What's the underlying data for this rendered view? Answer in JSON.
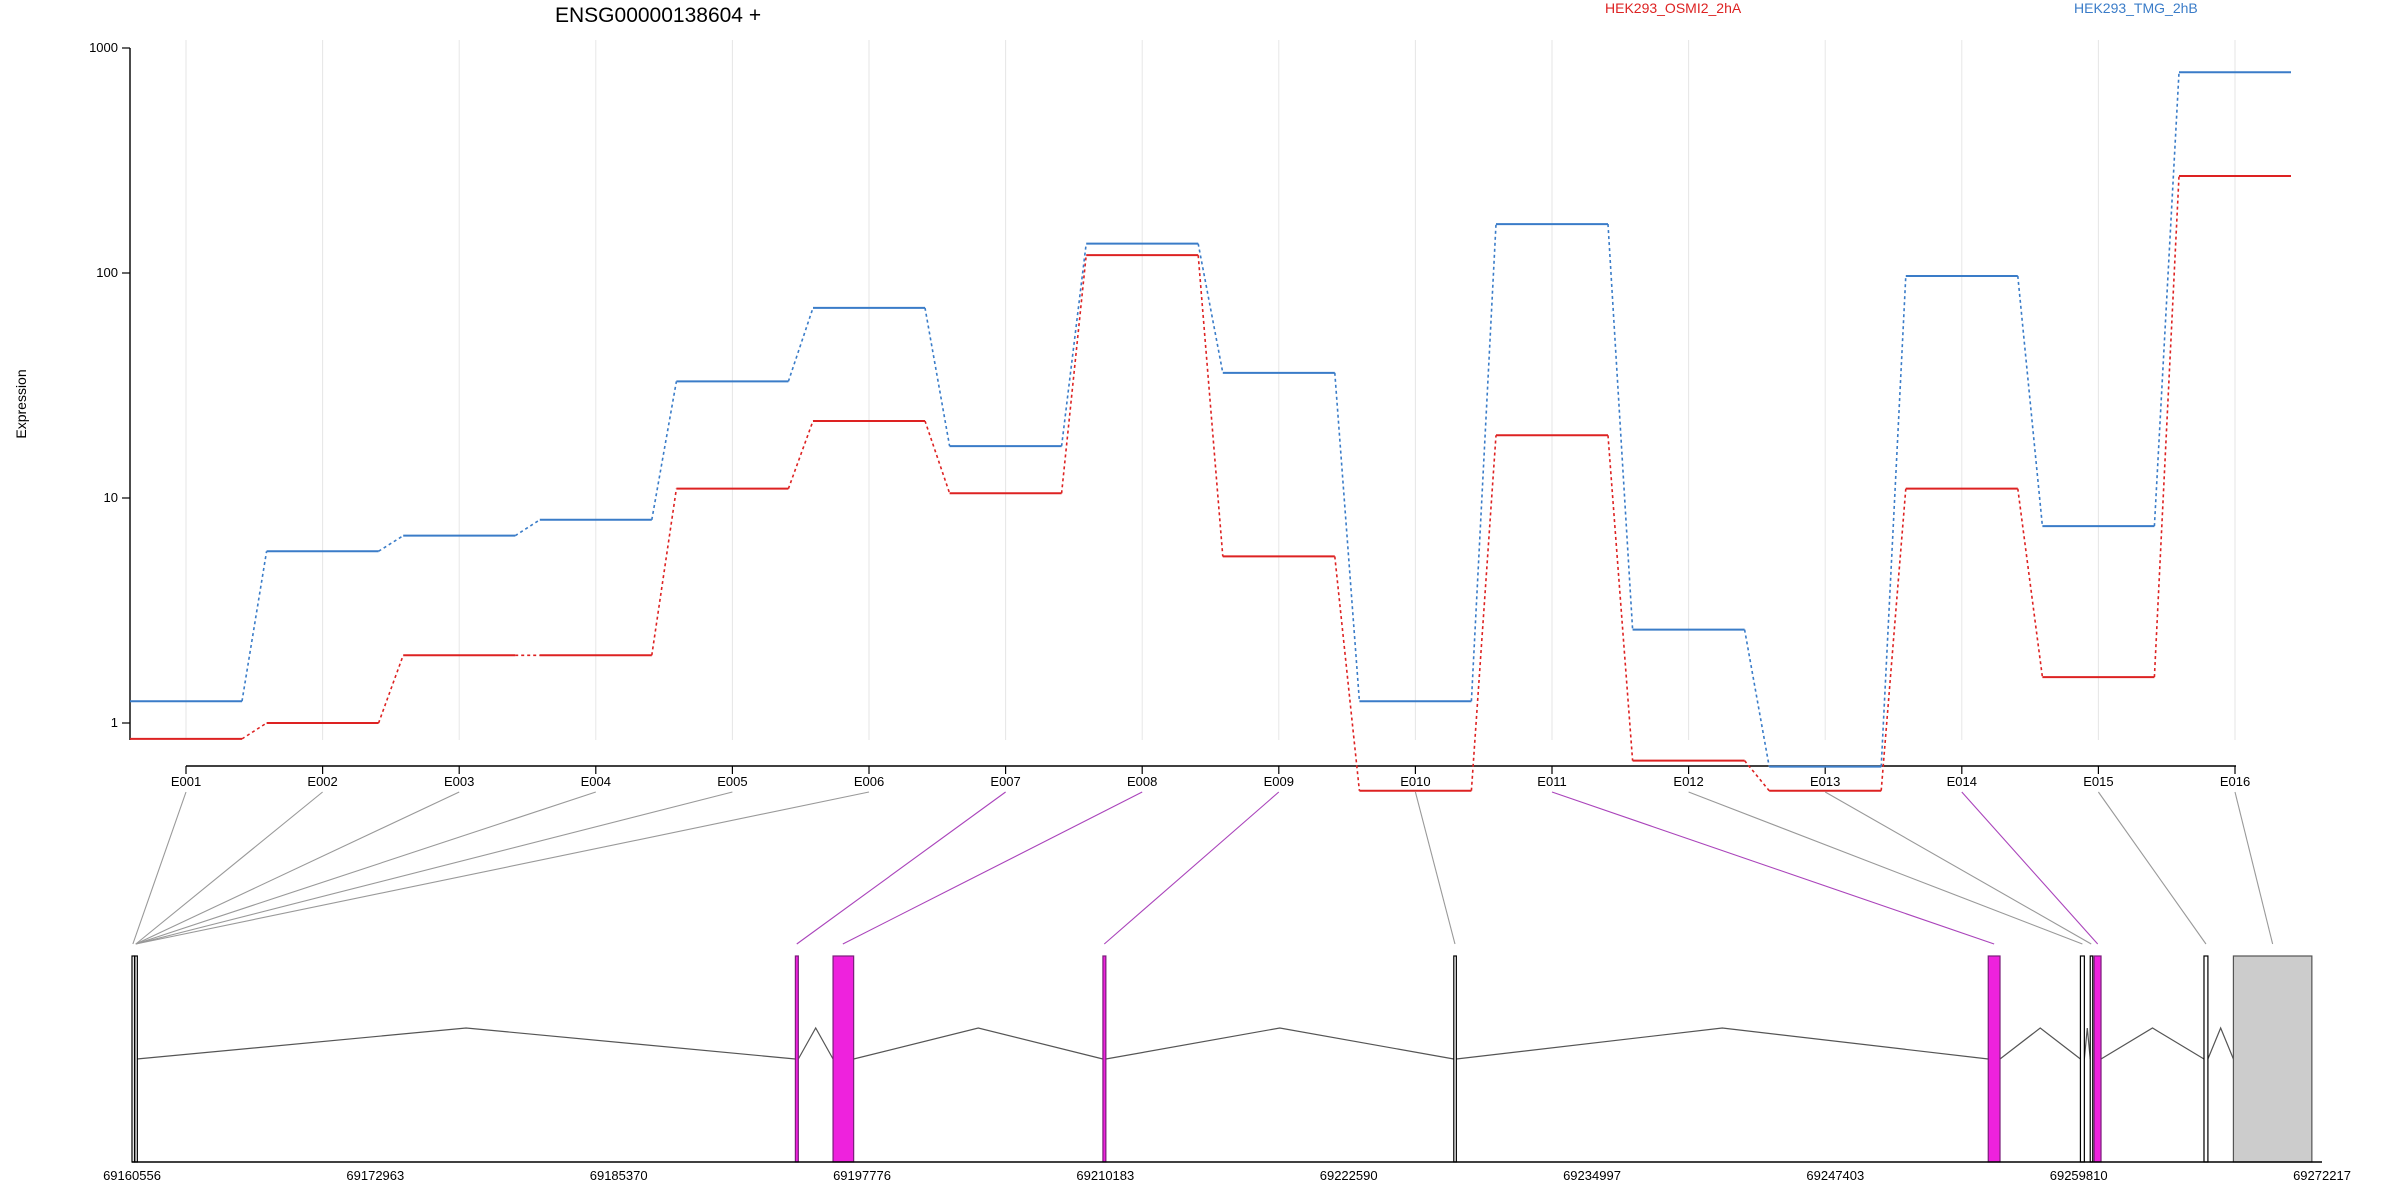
{
  "chart_data": {
    "type": "line",
    "title": "ENSG00000138604 +",
    "ylabel": "Expression",
    "xlabel": "",
    "y_scale": "log",
    "ylim": [
      0.5,
      1000
    ],
    "y_ticks": [
      1,
      10,
      100,
      1000
    ],
    "y_tick_labels": [
      "1",
      "10",
      "100",
      "1000"
    ],
    "grid": "vertical lines at exon ticks",
    "legend_position": "top-right",
    "categories": [
      "E001",
      "E002",
      "E003",
      "E004",
      "E005",
      "E006",
      "E007",
      "E008",
      "E009",
      "E010",
      "E011",
      "E012",
      "E013",
      "E014",
      "E015",
      "E016"
    ],
    "series": [
      {
        "name": "HEK293_OSMI2_2hA",
        "color": "#dd2222",
        "values": [
          0.85,
          1.0,
          2.0,
          2.0,
          11.0,
          22.0,
          10.5,
          120,
          5.5,
          0.5,
          19,
          0.68,
          0.5,
          11,
          1.6,
          270
        ]
      },
      {
        "name": "HEK293_TMG_2hB",
        "color": "#3a7cc8",
        "values": [
          1.25,
          5.8,
          6.8,
          8.0,
          33,
          70,
          17,
          135,
          36,
          1.25,
          165,
          2.6,
          0.64,
          97,
          7.5,
          780
        ]
      }
    ],
    "highlight_color": "#ee22dd",
    "connector_gray": "#999999",
    "connector_purple": "#aa44bb",
    "genomic_range": [
      69160556,
      69272217
    ],
    "genomic_tick_labels": [
      "69160556",
      "69172963",
      "69185370",
      "69197776",
      "69210183",
      "69222590",
      "69234997",
      "69247403",
      "69259810",
      "69272217"
    ],
    "gene_model_exons": [
      {
        "exon": "E001",
        "start": 69160556,
        "end": 69160676,
        "highlight": false
      },
      {
        "exon": "E002-E006",
        "start": 69160700,
        "end": 69160800,
        "highlight": false
      },
      {
        "exon": "E007",
        "start": 69194380,
        "end": 69194530,
        "highlight": true
      },
      {
        "exon": "E008",
        "start": 69196300,
        "end": 69197350,
        "highlight": true
      },
      {
        "exon": "E009",
        "start": 69210060,
        "end": 69210210,
        "highlight": true
      },
      {
        "exon": "E010",
        "start": 69227950,
        "end": 69228080,
        "highlight": false
      },
      {
        "exon": "E011",
        "start": 69255200,
        "end": 69255800,
        "highlight": true
      },
      {
        "exon": "E012",
        "start": 69259900,
        "end": 69260100,
        "highlight": false
      },
      {
        "exon": "E013",
        "start": 69260400,
        "end": 69260500,
        "highlight": false
      },
      {
        "exon": "E014",
        "start": 69260600,
        "end": 69260950,
        "highlight": true
      },
      {
        "exon": "E015",
        "start": 69266200,
        "end": 69266400,
        "highlight": false
      },
      {
        "exon": "E016",
        "start": 69267700,
        "end": 69271700,
        "highlight": false
      }
    ]
  }
}
